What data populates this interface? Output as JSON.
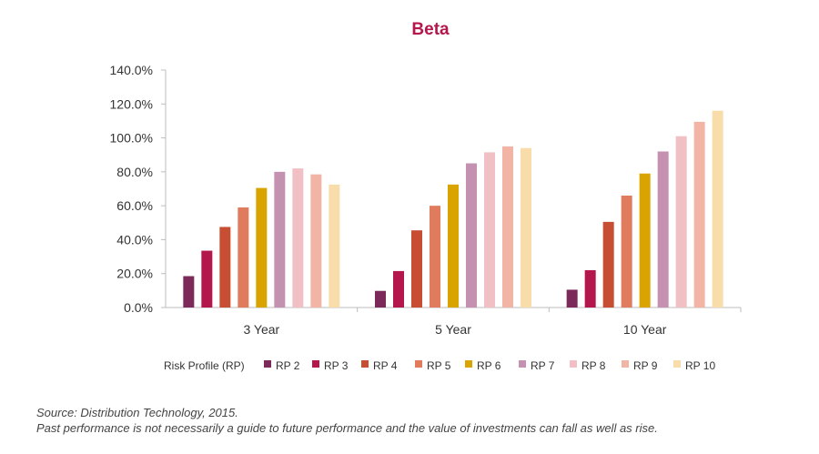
{
  "chart_data": {
    "type": "bar",
    "title": "Beta",
    "categories": [
      "3 Year",
      "5 Year",
      "10 Year"
    ],
    "ylim": [
      0,
      140
    ],
    "yticks": [
      "0.0%",
      "20.0%",
      "40.0%",
      "60.0%",
      "80.0%",
      "100.0%",
      "120.0%",
      "140.0%"
    ],
    "grid": false,
    "legend_title": "Risk Profile (RP)",
    "legend_position": "bottom",
    "series": [
      {
        "name": "RP 2",
        "color": "#7b2a5a",
        "values": [
          18.5,
          9.8,
          10.5
        ]
      },
      {
        "name": "RP 3",
        "color": "#b3174b",
        "values": [
          33.5,
          21.5,
          22.0
        ]
      },
      {
        "name": "RP 4",
        "color": "#c84e33",
        "values": [
          47.5,
          45.5,
          50.5
        ]
      },
      {
        "name": "RP 5",
        "color": "#e07b5e",
        "values": [
          59.0,
          60.0,
          66.0
        ]
      },
      {
        "name": "RP 6",
        "color": "#d9a400",
        "values": [
          70.5,
          72.5,
          79.0
        ]
      },
      {
        "name": "RP 7",
        "color": "#c491b1",
        "values": [
          80.0,
          85.0,
          92.0
        ]
      },
      {
        "name": "RP 8",
        "color": "#f0c0c4",
        "values": [
          82.0,
          91.5,
          101.0
        ]
      },
      {
        "name": "RP 9",
        "color": "#f2b5a5",
        "values": [
          78.5,
          95.0,
          109.5
        ]
      },
      {
        "name": "RP 10",
        "color": "#f8dcaa",
        "values": [
          72.5,
          94.0,
          116.0
        ]
      }
    ],
    "title_color": "#b3174b"
  },
  "footnotes": {
    "source": "Source: Distribution Technology, 2015.",
    "disclaimer": "Past performance is not necessarily a guide to future performance and the value of investments can fall as well as rise."
  }
}
